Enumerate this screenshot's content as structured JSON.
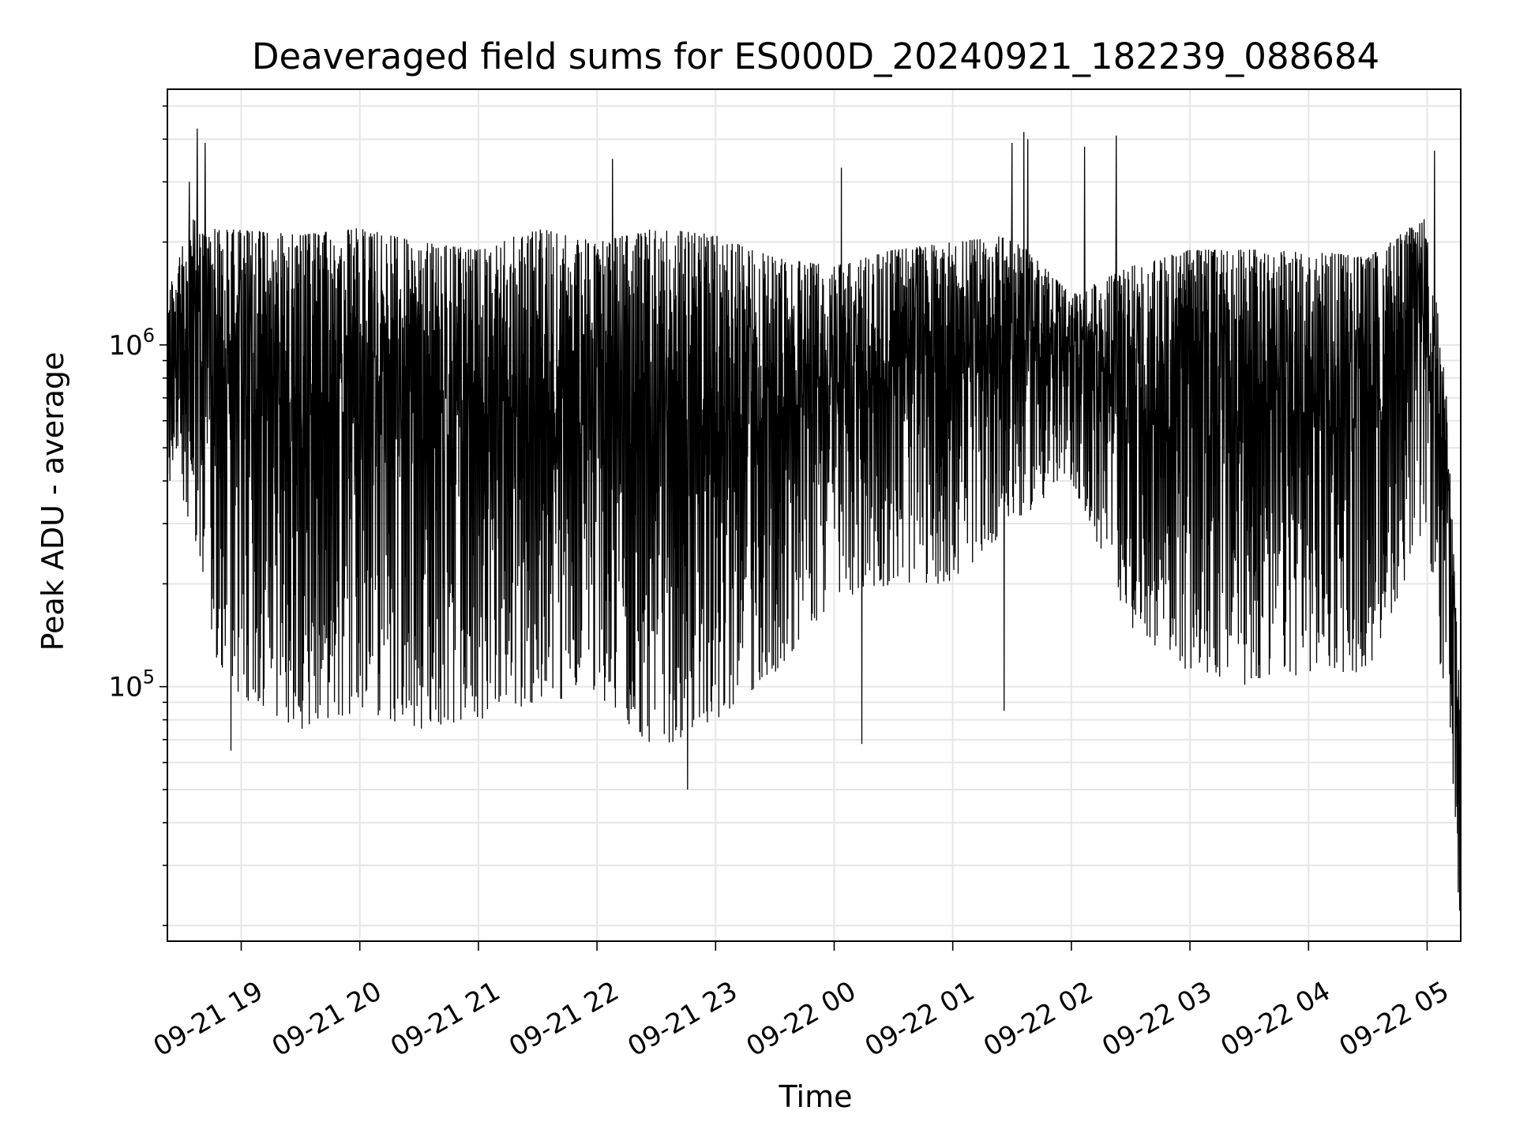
{
  "chart_data": {
    "type": "line",
    "title": "Deaveraged field sums for ES000D_20240921_182239_088684",
    "xlabel": "Time",
    "ylabel": "Peak ADU - average",
    "x_tick_labels": [
      "09-21 19",
      "09-21 20",
      "09-21 21",
      "09-21 22",
      "09-21 23",
      "09-22 00",
      "09-22 01",
      "09-22 02",
      "09-22 03",
      "09-22 04",
      "09-22 05"
    ],
    "x_range": [
      "2024-09-21T18:22:39",
      "2024-09-22T05:17:00"
    ],
    "ylim": [
      18000,
      5600000
    ],
    "yscale": "log",
    "y_tick_values": [
      100000,
      1000000
    ],
    "y_tick_labels": [
      {
        "base": "10",
        "exp": "5"
      },
      {
        "base": "10",
        "exp": "6"
      }
    ],
    "grid": true,
    "line_color": "#000000",
    "grid_color": "#e6e6e6",
    "envelope": [
      {
        "t": "2024-09-21T18:22:39",
        "top": 1400000,
        "bottom": 400000
      },
      {
        "t": "2024-09-21T18:35:00",
        "top": 2400000,
        "bottom": 300000
      },
      {
        "t": "2024-09-21T18:50:00",
        "top": 2200000,
        "bottom": 100000
      },
      {
        "t": "2024-09-21T19:30:00",
        "top": 2100000,
        "bottom": 75000
      },
      {
        "t": "2024-09-21T20:00:00",
        "top": 2200000,
        "bottom": 85000
      },
      {
        "t": "2024-09-21T20:30:00",
        "top": 2000000,
        "bottom": 75000
      },
      {
        "t": "2024-09-21T21:00:00",
        "top": 1900000,
        "bottom": 80000
      },
      {
        "t": "2024-09-21T21:30:00",
        "top": 2200000,
        "bottom": 90000
      },
      {
        "t": "2024-09-21T22:00:00",
        "top": 2000000,
        "bottom": 95000
      },
      {
        "t": "2024-09-21T22:30:00",
        "top": 2200000,
        "bottom": 65000
      },
      {
        "t": "2024-09-21T23:00:00",
        "top": 2100000,
        "bottom": 80000
      },
      {
        "t": "2024-09-21T23:30:00",
        "top": 1800000,
        "bottom": 110000
      },
      {
        "t": "2024-09-22T00:00:00",
        "top": 1700000,
        "bottom": 180000
      },
      {
        "t": "2024-09-22T00:30:00",
        "top": 1900000,
        "bottom": 200000
      },
      {
        "t": "2024-09-22T01:00:00",
        "top": 2000000,
        "bottom": 200000
      },
      {
        "t": "2024-09-22T01:30:00",
        "top": 2100000,
        "bottom": 300000
      },
      {
        "t": "2024-09-22T02:00:00",
        "top": 1400000,
        "bottom": 400000
      },
      {
        "t": "2024-09-22T02:30:00",
        "top": 1700000,
        "bottom": 150000
      },
      {
        "t": "2024-09-22T03:00:00",
        "top": 1900000,
        "bottom": 110000
      },
      {
        "t": "2024-09-22T03:30:00",
        "top": 1900000,
        "bottom": 100000
      },
      {
        "t": "2024-09-22T04:00:00",
        "top": 1900000,
        "bottom": 110000
      },
      {
        "t": "2024-09-22T04:30:00",
        "top": 1800000,
        "bottom": 110000
      },
      {
        "t": "2024-09-22T05:00:00",
        "top": 2400000,
        "bottom": 300000
      },
      {
        "t": "2024-09-22T05:10:00",
        "top": 700000,
        "bottom": 70000
      },
      {
        "t": "2024-09-22T05:17:00",
        "top": 80000,
        "bottom": 20000
      }
    ],
    "spikes": [
      {
        "t": "2024-09-21T18:38:00",
        "y": 4300000
      },
      {
        "t": "2024-09-21T18:42:00",
        "y": 3900000
      },
      {
        "t": "2024-09-21T18:34:00",
        "y": 3000000
      },
      {
        "t": "2024-09-21T22:08:00",
        "y": 3500000
      },
      {
        "t": "2024-09-22T00:04:00",
        "y": 3300000
      },
      {
        "t": "2024-09-22T01:30:00",
        "y": 3900000
      },
      {
        "t": "2024-09-22T01:36:00",
        "y": 4200000
      },
      {
        "t": "2024-09-22T01:38:00",
        "y": 4000000
      },
      {
        "t": "2024-09-22T02:07:00",
        "y": 3800000
      },
      {
        "t": "2024-09-22T02:23:00",
        "y": 4100000
      },
      {
        "t": "2024-09-22T05:04:00",
        "y": 3700000
      },
      {
        "t": "2024-09-21T22:46:00",
        "y": 50000
      },
      {
        "t": "2024-09-22T00:14:00",
        "y": 68000
      },
      {
        "t": "2024-09-22T01:26:00",
        "y": 85000
      },
      {
        "t": "2024-09-21T18:55:00",
        "y": 65000
      },
      {
        "t": "2024-09-22T05:16:00",
        "y": 25000
      }
    ]
  }
}
